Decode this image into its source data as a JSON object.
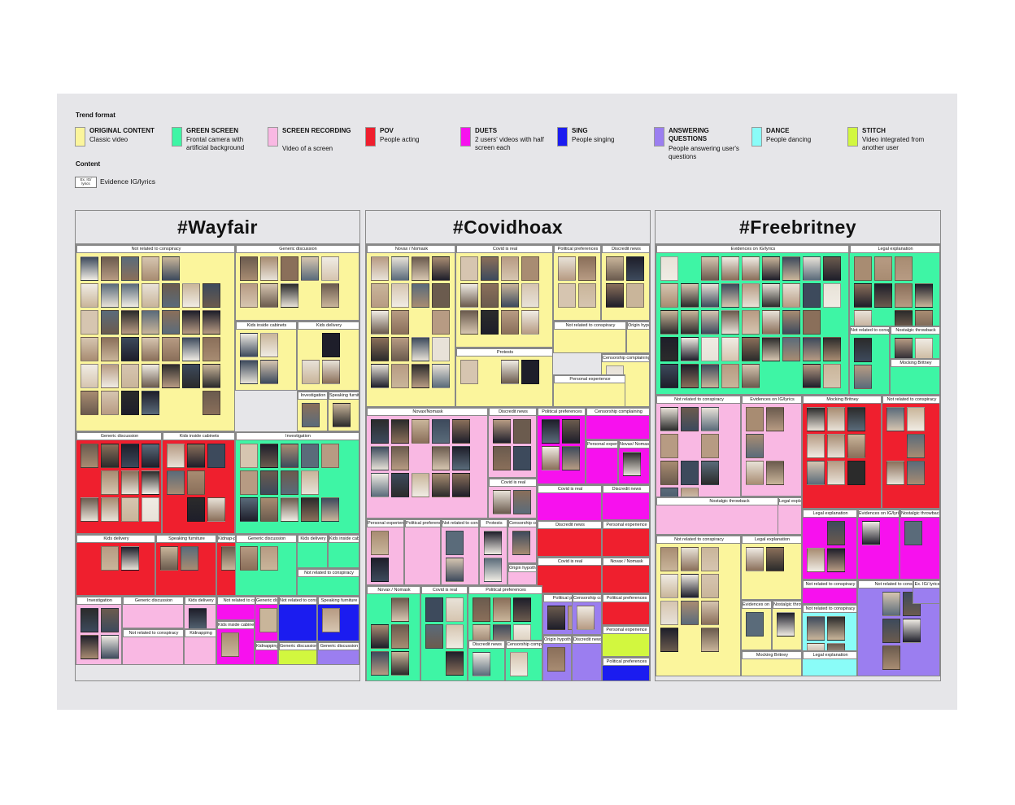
{
  "legend": {
    "trend_format_title": "Trend format",
    "content_title": "Content",
    "formats": [
      {
        "name": "ORIGINAL CONTENT",
        "desc": "Classic video",
        "color": "#fbf59c"
      },
      {
        "name": "GREEN SCREEN",
        "desc": "Frontal camera with artificial background",
        "color": "#3ef5a5"
      },
      {
        "name": "SCREEN RECORDING",
        "desc": "Video of a screen",
        "color": "#f9b8e3"
      },
      {
        "name": "POV",
        "desc": "People acting",
        "color": "#ef1f2e"
      },
      {
        "name": "DUETS",
        "desc": "2 users' videos with half screen each",
        "color": "#f711ee"
      },
      {
        "name": "SING",
        "desc": "People singing",
        "color": "#1b1cf0"
      },
      {
        "name": "ANSWERING QUESTIONS",
        "desc": "People answering user's questions",
        "color": "#9b7ef0"
      },
      {
        "name": "DANCE",
        "desc": "People dancing",
        "color": "#8afcf8"
      },
      {
        "name": "STITCH",
        "desc": "Video integrated from another user",
        "color": "#d2f73f"
      }
    ],
    "content_box": "Ex. IG/ lyrics",
    "content_label": "Evidence IG/lyrics"
  },
  "panels": [
    {
      "title": "#Wayfair",
      "sections": [
        {
          "label": "Not related to conspiracy",
          "color": "y"
        },
        {
          "label": "Generic discussion",
          "color": "y"
        },
        {
          "label": "Kids inside cabinets",
          "color": "y"
        },
        {
          "label": "Kids delivery",
          "color": "y"
        },
        {
          "label": "Investigation",
          "color": "y"
        },
        {
          "label": "Speaking furniture",
          "color": "y"
        },
        {
          "label": "Generic discussion",
          "color": "r"
        },
        {
          "label": "Kids inside cabinets",
          "color": "r"
        },
        {
          "label": "Investigation",
          "color": "g"
        },
        {
          "label": "Kids delivery",
          "color": "r"
        },
        {
          "label": "Speaking furniture",
          "color": "r"
        },
        {
          "label": "Kidnap-ping",
          "color": "r"
        },
        {
          "label": "Generic discussion",
          "color": "g"
        },
        {
          "label": "Kids delivery",
          "color": "g"
        },
        {
          "label": "Kids inside cabinets",
          "color": "g"
        },
        {
          "label": "Not related to conspiracy",
          "color": "g"
        },
        {
          "label": "Investigation",
          "color": "p"
        },
        {
          "label": "Generic discussion",
          "color": "p"
        },
        {
          "label": "Kids delivery",
          "color": "p"
        },
        {
          "label": "Not related to conspiracy",
          "color": "m"
        },
        {
          "label": "Generic discussion",
          "color": "m"
        },
        {
          "label": "Not related to conspiracy",
          "color": "b"
        },
        {
          "label": "Speaking furniture",
          "color": "b"
        },
        {
          "label": "Not related to conspiracy",
          "color": "p"
        },
        {
          "label": "Kidnapping",
          "color": "p"
        },
        {
          "label": "Kids inside cabinets",
          "color": "m"
        },
        {
          "label": "Kidnapping",
          "color": "m"
        },
        {
          "label": "Generic discussion",
          "color": "l"
        },
        {
          "label": "Generic discussion",
          "color": "v"
        }
      ]
    },
    {
      "title": "#Covidhoax",
      "sections": [
        {
          "label": "Novax / Nomask",
          "color": "y"
        },
        {
          "label": "Covid is real",
          "color": "y"
        },
        {
          "label": "Political preferences",
          "color": "y"
        },
        {
          "label": "Discredit news",
          "color": "y"
        },
        {
          "label": "Not related to conspiracy",
          "color": "y"
        },
        {
          "label": "Origin hypothesis",
          "color": "y"
        },
        {
          "label": "Protests",
          "color": "y"
        },
        {
          "label": "Censorship complaining",
          "color": "y"
        },
        {
          "label": "Personal experience",
          "color": "y"
        },
        {
          "label": "Novax/Nomask",
          "color": "p"
        },
        {
          "label": "Discredit news",
          "color": "p"
        },
        {
          "label": "Political preferences",
          "color": "m"
        },
        {
          "label": "Censorship complaining",
          "color": "m"
        },
        {
          "label": "Personal experience",
          "color": "m"
        },
        {
          "label": "Novax/ Nomask",
          "color": "m"
        },
        {
          "label": "Covid is real",
          "color": "m"
        },
        {
          "label": "Discredit news",
          "color": "m"
        },
        {
          "label": "Covid is real",
          "color": "p"
        },
        {
          "label": "Personal experience",
          "color": "p"
        },
        {
          "label": "Political preferences",
          "color": "p"
        },
        {
          "label": "Not related to conspiracy",
          "color": "p"
        },
        {
          "label": "Protests",
          "color": "p"
        },
        {
          "label": "Censorship complaining",
          "color": "p"
        },
        {
          "label": "Origin hypothesis",
          "color": "p"
        },
        {
          "label": "Discredit news",
          "color": "r"
        },
        {
          "label": "Personal experience",
          "color": "r"
        },
        {
          "label": "Covid is real",
          "color": "r"
        },
        {
          "label": "Novax / Nomask",
          "color": "r"
        },
        {
          "label": "Political preferences",
          "color": "r"
        },
        {
          "label": "Personal experience",
          "color": "l"
        },
        {
          "label": "Political preferences",
          "color": "b"
        },
        {
          "label": "Novax / Nomask",
          "color": "g"
        },
        {
          "label": "Covid is real",
          "color": "g"
        },
        {
          "label": "Political preferences",
          "color": "g"
        },
        {
          "label": "Discredit news",
          "color": "g"
        },
        {
          "label": "Censorship complaining",
          "color": "g"
        },
        {
          "label": "Origin hypothesis",
          "color": "v"
        },
        {
          "label": "Discredit news",
          "color": "v"
        },
        {
          "label": "Political preferences",
          "color": "v"
        },
        {
          "label": "Censorship complaining",
          "color": "v"
        }
      ]
    },
    {
      "title": "#Freebritney",
      "sections": [
        {
          "label": "Evidences on IG/lyrics",
          "color": "g"
        },
        {
          "label": "Legal explanation",
          "color": "g"
        },
        {
          "label": "Not related to conspiracy",
          "color": "g"
        },
        {
          "label": "Nostalgic throwback",
          "color": "g"
        },
        {
          "label": "Mocking Britney",
          "color": "g"
        },
        {
          "label": "Not related to conspiracy",
          "color": "p"
        },
        {
          "label": "Evidences on IG/lyrics",
          "color": "p"
        },
        {
          "label": "Mocking Britney",
          "color": "r"
        },
        {
          "label": "Not related to conspiracy",
          "color": "r"
        },
        {
          "label": "Nostalgic throwback",
          "color": "p"
        },
        {
          "label": "Legal explanation",
          "color": "p"
        },
        {
          "label": "Not related to conspiracy",
          "color": "y"
        },
        {
          "label": "Legal explanation",
          "color": "y"
        },
        {
          "label": "Evidences on IG/lyrics",
          "color": "y"
        },
        {
          "label": "Nostalgic throwback",
          "color": "y"
        },
        {
          "label": "Mocking Britney",
          "color": "y"
        },
        {
          "label": "Legal explanation",
          "color": "m"
        },
        {
          "label": "Evidences on IG/lyrics",
          "color": "m"
        },
        {
          "label": "Nostalgic throwback",
          "color": "m"
        },
        {
          "label": "Not related to conspiracy",
          "color": "m"
        },
        {
          "label": "Not related to conspiracy",
          "color": "c"
        },
        {
          "label": "Legal explanation",
          "color": "c"
        },
        {
          "label": "Not related to conspiracy",
          "color": "v"
        },
        {
          "label": "Ex. IG/ lyrics",
          "color": "v"
        }
      ]
    }
  ]
}
